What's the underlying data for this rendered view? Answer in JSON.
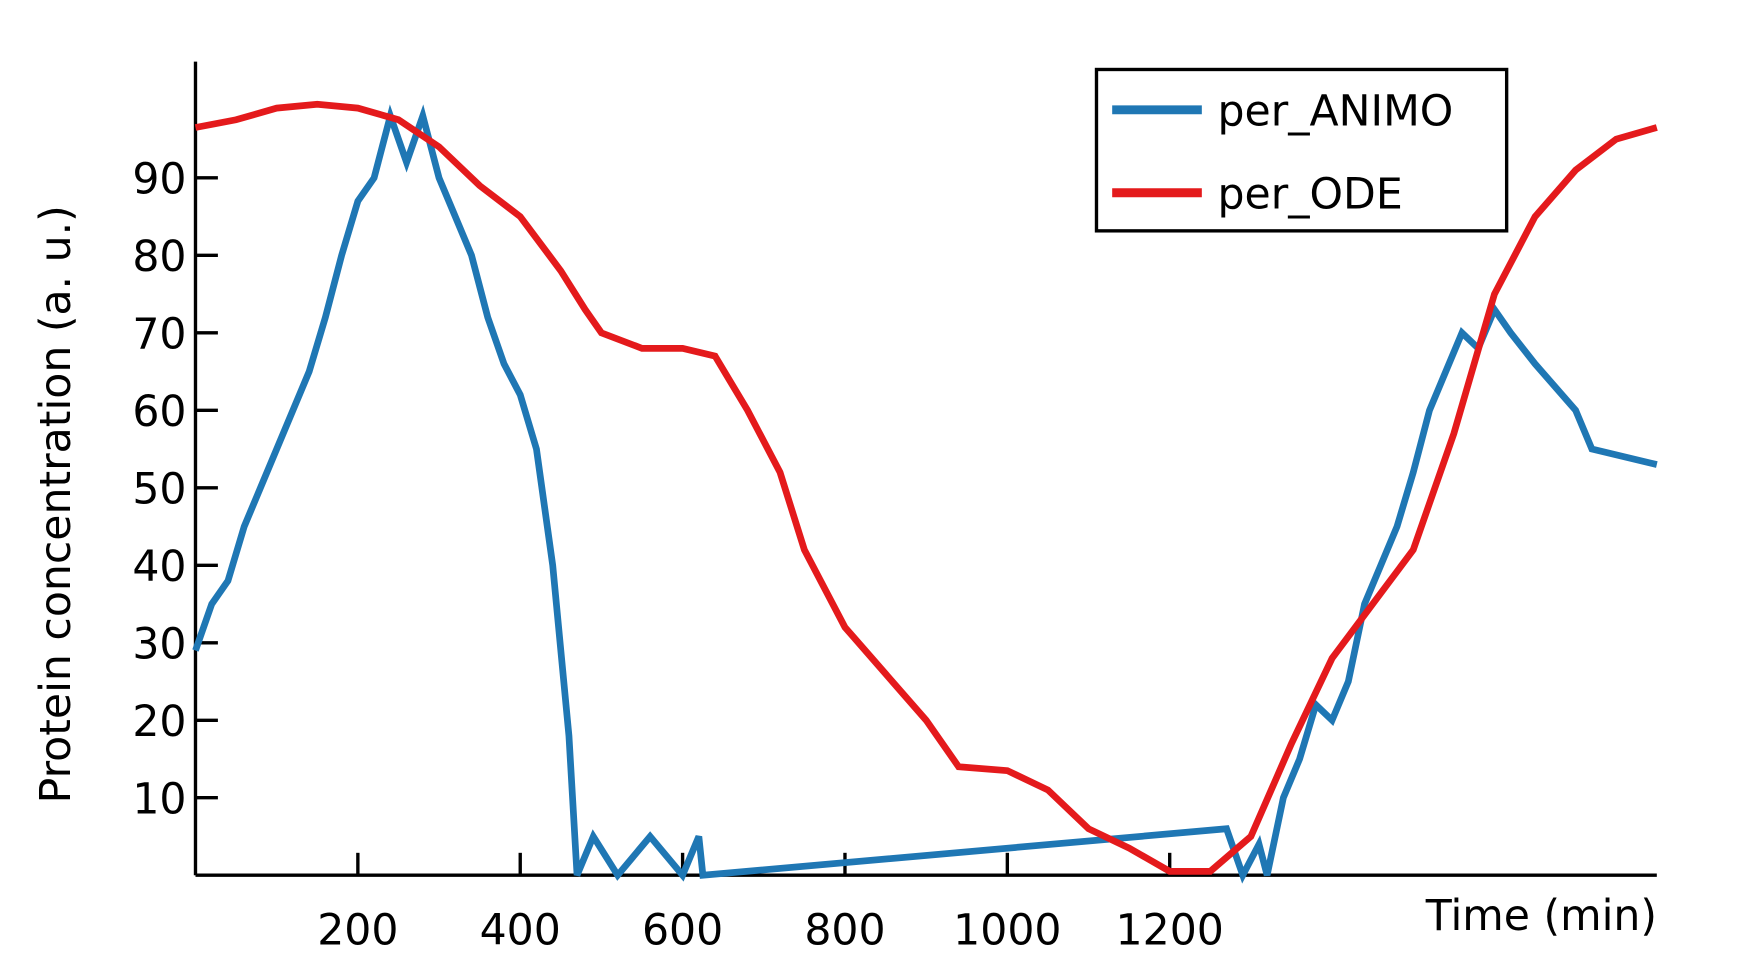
{
  "chart_data": {
    "type": "line",
    "xlabel": "Time (min)",
    "ylabel": "Protein concentration (a. u.)",
    "xlim": [
      0,
      1800
    ],
    "ylim": [
      0,
      105
    ],
    "xticks": [
      200,
      400,
      600,
      800,
      1000,
      1200
    ],
    "yticks": [
      10,
      20,
      30,
      40,
      50,
      60,
      70,
      80,
      90
    ],
    "legend": "upper right",
    "series": [
      {
        "name": "per_ANIMO",
        "color": "#1f77b4",
        "x": [
          0,
          20,
          40,
          60,
          80,
          100,
          120,
          140,
          160,
          180,
          200,
          220,
          240,
          260,
          280,
          300,
          320,
          340,
          360,
          380,
          400,
          420,
          440,
          460,
          470,
          490,
          520,
          560,
          600,
          620,
          625,
          1270,
          1290,
          1310,
          1320,
          1340,
          1360,
          1380,
          1400,
          1420,
          1440,
          1460,
          1480,
          1500,
          1520,
          1540,
          1560,
          1580,
          1600,
          1620,
          1650,
          1700,
          1720,
          1800
        ],
        "values": [
          29,
          35,
          38,
          45,
          50,
          55,
          60,
          65,
          72,
          80,
          87,
          90,
          98,
          92,
          98,
          90,
          85,
          80,
          72,
          66,
          62,
          55,
          40,
          18,
          0,
          5,
          0,
          5,
          0,
          5,
          0,
          6,
          0,
          4,
          0,
          10,
          15,
          22,
          20,
          25,
          35,
          40,
          45,
          52,
          60,
          65,
          70,
          68,
          73,
          70,
          66,
          60,
          55,
          53
        ]
      },
      {
        "name": "per_ODE",
        "color": "#e41a1c",
        "x": [
          0,
          50,
          100,
          150,
          200,
          250,
          300,
          350,
          400,
          450,
          480,
          500,
          550,
          600,
          640,
          680,
          720,
          750,
          800,
          850,
          900,
          940,
          1000,
          1050,
          1100,
          1150,
          1200,
          1250,
          1300,
          1350,
          1400,
          1450,
          1500,
          1550,
          1600,
          1650,
          1700,
          1750,
          1800
        ],
        "values": [
          96.5,
          97.5,
          99,
          99.5,
          99,
          97.5,
          94,
          89,
          85,
          78,
          73,
          70,
          68,
          68,
          67,
          60,
          52,
          42,
          32,
          26,
          20,
          14,
          13.5,
          11,
          6,
          3.5,
          0.5,
          0.5,
          5,
          17,
          28,
          35,
          42,
          57,
          75,
          85,
          91,
          95,
          96.5
        ]
      }
    ]
  }
}
